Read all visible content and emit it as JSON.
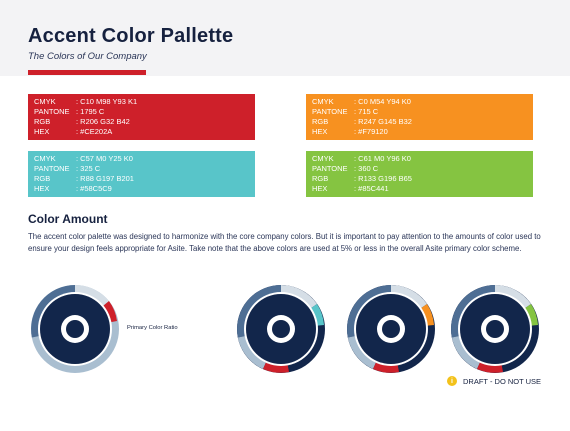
{
  "header": {
    "title": "Accent Color Pallette",
    "subtitle": "The Colors of Our Company",
    "accent_color": "#CE202A"
  },
  "swatches": [
    {
      "id": "red",
      "color": "#CE202A",
      "cmyk": ": C10 M98 Y93 K1",
      "pantone": ": 1795 C",
      "rgb": ": R206 G32 B42",
      "hex": ": #CE202A"
    },
    {
      "id": "orange",
      "color": "#F79120",
      "cmyk": ": C0 M54 Y94 K0",
      "pantone": ": 715 C",
      "rgb": ": R247 G145 B32",
      "hex": ": #F79120"
    },
    {
      "id": "cyan",
      "color": "#58C5C9",
      "cmyk": ": C57 M0 Y25 K0",
      "pantone": ": 325 C",
      "rgb": ": R88 G197 B201",
      "hex": ": #58C5C9"
    },
    {
      "id": "green",
      "color": "#85C441",
      "cmyk": ": C61 M0 Y96 K0",
      "pantone": ": 360 C",
      "rgb": ": R133 G196 B65",
      "hex": ": #85C441"
    }
  ],
  "labels": {
    "cmyk": "CMYK",
    "pantone": "PANTONE",
    "rgb": "RGB",
    "hex": "HEX"
  },
  "section": {
    "title": "Color Amount",
    "paragraph": "The accent color palette was designed to harmonize with the core company colors. But it is important to pay attention to the amounts of color used to ensure your design feels appropriate for Asite. Take note that the above colors are used at 5% or less in the overall Asite primary color scheme."
  },
  "ratio_label": "Primary Color Ratio",
  "draft_label": "DRAFT - DO NOT USE",
  "draft_icon": "info-icon",
  "colors": {
    "navy": "#12264B",
    "steel": "#4E6E94",
    "light_steel": "#A9BED0",
    "pale": "#D5DEE6",
    "white": "#FFFFFF"
  }
}
